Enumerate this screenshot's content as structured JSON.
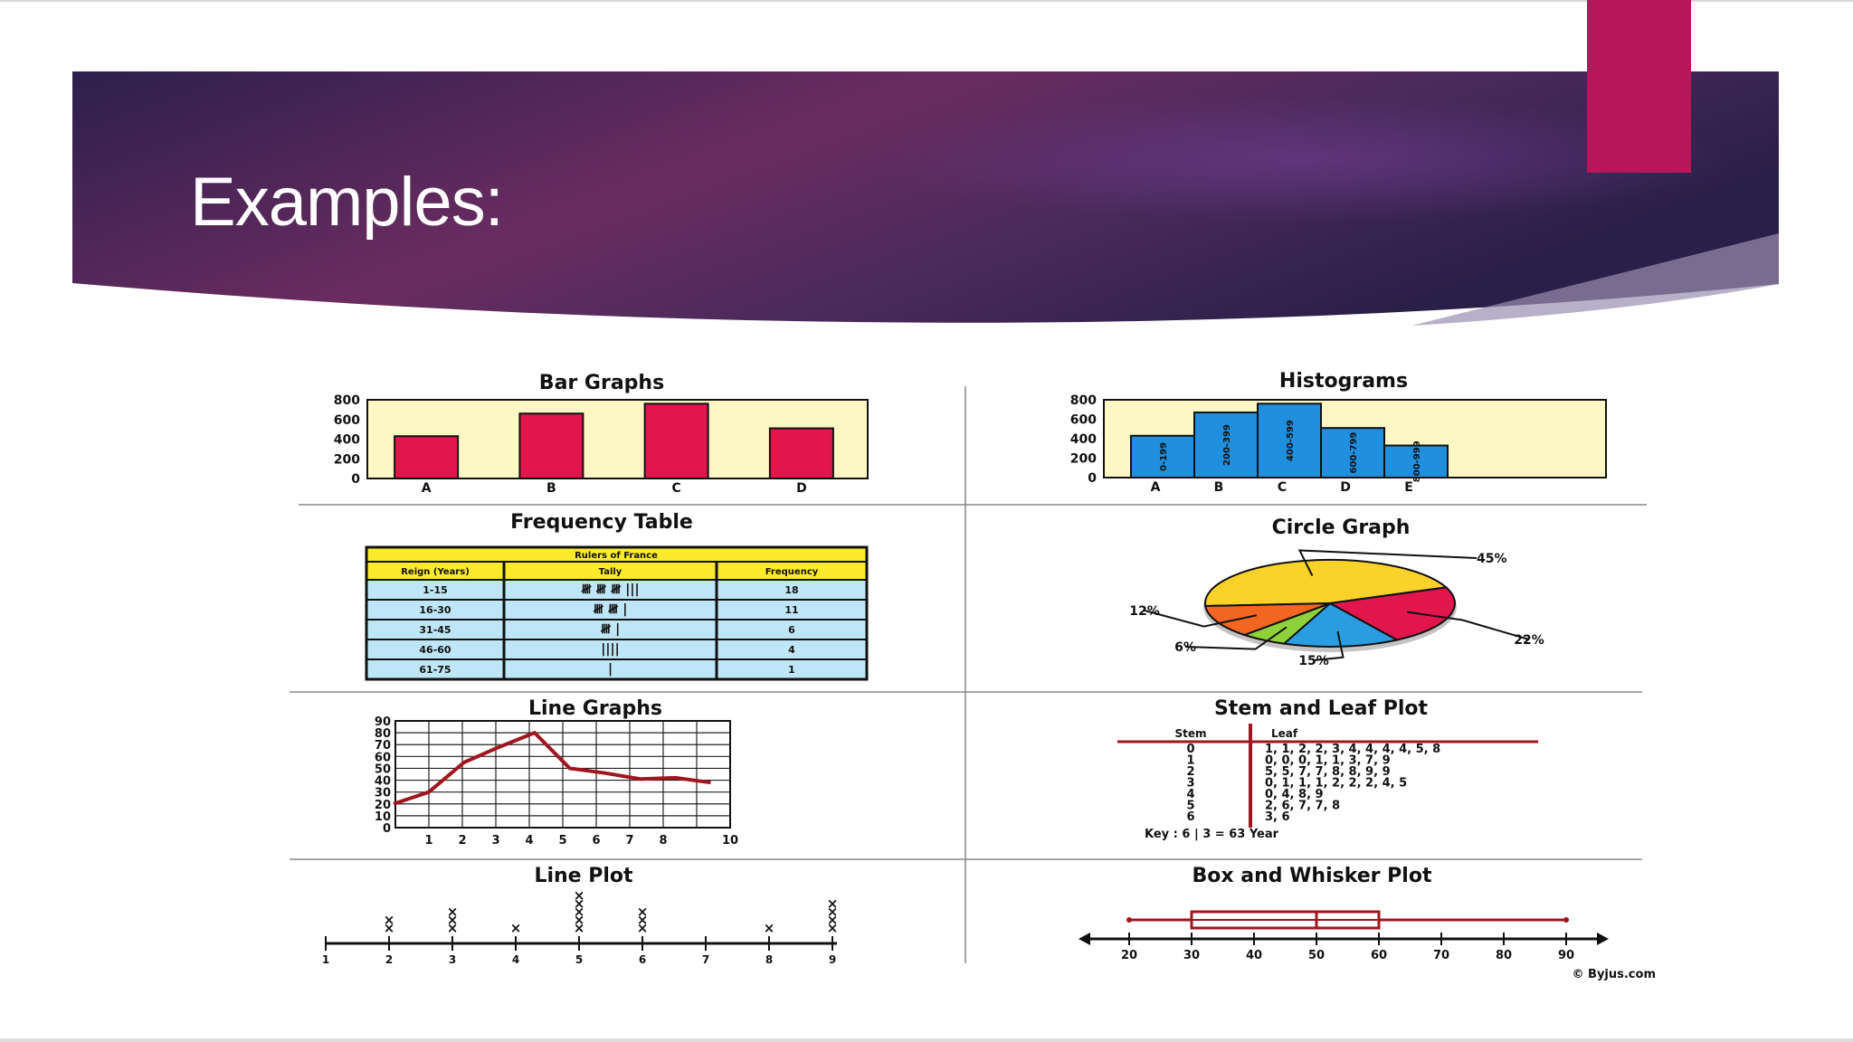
{
  "slide": {
    "title": "Examples:",
    "colors": {
      "header_dark": "#2c1f4c",
      "header_mid": "#6a2c5e",
      "accent": "#b8155a",
      "chart_red": "#e0164d",
      "chart_blue": "#1f8fde",
      "chart_fill": "#fdf7c3"
    }
  },
  "figure": {
    "credit": "© Byjus.com",
    "bar_graphs": {
      "title": "Bar Graphs",
      "y_ticks": [
        "800",
        "600",
        "400",
        "200",
        "0"
      ],
      "categories": [
        "A",
        "B",
        "C",
        "D"
      ],
      "values": [
        430,
        660,
        760,
        510
      ],
      "ylim": [
        0,
        800
      ]
    },
    "histograms": {
      "title": "Histograms",
      "y_ticks": [
        "800",
        "600",
        "400",
        "200",
        "0"
      ],
      "categories": [
        "A",
        "B",
        "C",
        "D",
        "E"
      ],
      "bin_labels": [
        "0-199",
        "200-399",
        "400-599",
        "600-799",
        "800-999"
      ],
      "values": [
        430,
        670,
        760,
        510,
        330
      ],
      "ylim": [
        0,
        800
      ]
    },
    "frequency_table": {
      "title": "Frequency Table",
      "caption": "Rulers of France",
      "headers": [
        "Reign (Years)",
        "Tally",
        "Frequency"
      ],
      "rows": [
        [
          "1-15",
          "𝍸 𝍸 𝍸 |||",
          "18"
        ],
        [
          "16-30",
          "𝍸 𝍸 |",
          "11"
        ],
        [
          "31-45",
          "𝍸 |",
          "6"
        ],
        [
          "46-60",
          "||||",
          "4"
        ],
        [
          "61-75",
          "|",
          "1"
        ]
      ]
    },
    "circle_graph": {
      "title": "Circle Graph",
      "slices": [
        {
          "label": "45%",
          "value": 45,
          "color": "#fbd22a"
        },
        {
          "label": "22%",
          "value": 22,
          "color": "#e0164d"
        },
        {
          "label": "15%",
          "value": 15,
          "color": "#2a9de0"
        },
        {
          "label": "6%",
          "value": 6,
          "color": "#8fd13a"
        },
        {
          "label": "12%",
          "value": 12,
          "color": "#f26522"
        }
      ]
    },
    "line_graphs": {
      "title": "Line Graphs",
      "y_ticks": [
        "90",
        "80",
        "70",
        "60",
        "50",
        "40",
        "30",
        "20",
        "10",
        "0"
      ],
      "x_ticks": [
        "1",
        "2",
        "3",
        "4",
        "5",
        "6",
        "7",
        "8",
        "10"
      ],
      "points": [
        [
          0,
          20
        ],
        [
          1,
          30
        ],
        [
          2,
          55
        ],
        [
          3,
          68
        ],
        [
          4,
          80
        ],
        [
          5,
          50
        ],
        [
          6,
          46
        ],
        [
          7,
          41
        ],
        [
          8,
          42
        ],
        [
          9,
          38
        ]
      ],
      "ylim": [
        0,
        90
      ]
    },
    "stem_leaf": {
      "title": "Stem and Leaf Plot",
      "headers": [
        "Stem",
        "Leaf"
      ],
      "rows": [
        [
          "0",
          "1, 1, 2, 2, 3, 4, 4, 4, 4, 5, 8"
        ],
        [
          "1",
          "0, 0, 0, 1, 1, 3, 7, 9"
        ],
        [
          "2",
          "5, 5, 7, 7, 8, 8, 9, 9"
        ],
        [
          "3",
          "0, 1, 1, 1, 2, 2, 2, 4, 5"
        ],
        [
          "4",
          "0, 4, 8, 9"
        ],
        [
          "5",
          "2, 6, 7, 7, 8"
        ],
        [
          "6",
          "3, 6"
        ]
      ],
      "key": "Key : 6 | 3 = 63 Year"
    },
    "line_plot": {
      "title": "Line Plot",
      "x_ticks": [
        "1",
        "2",
        "3",
        "4",
        "5",
        "6",
        "7",
        "8",
        "9"
      ],
      "counts": [
        0,
        2,
        3,
        1,
        5,
        3,
        0,
        1,
        4
      ]
    },
    "box_whisker": {
      "title": "Box and Whisker Plot",
      "x_ticks": [
        "20",
        "30",
        "40",
        "50",
        "60",
        "70",
        "80",
        "90"
      ],
      "min": 20,
      "q1": 30,
      "median": 50,
      "q3": 60,
      "max": 90
    }
  }
}
